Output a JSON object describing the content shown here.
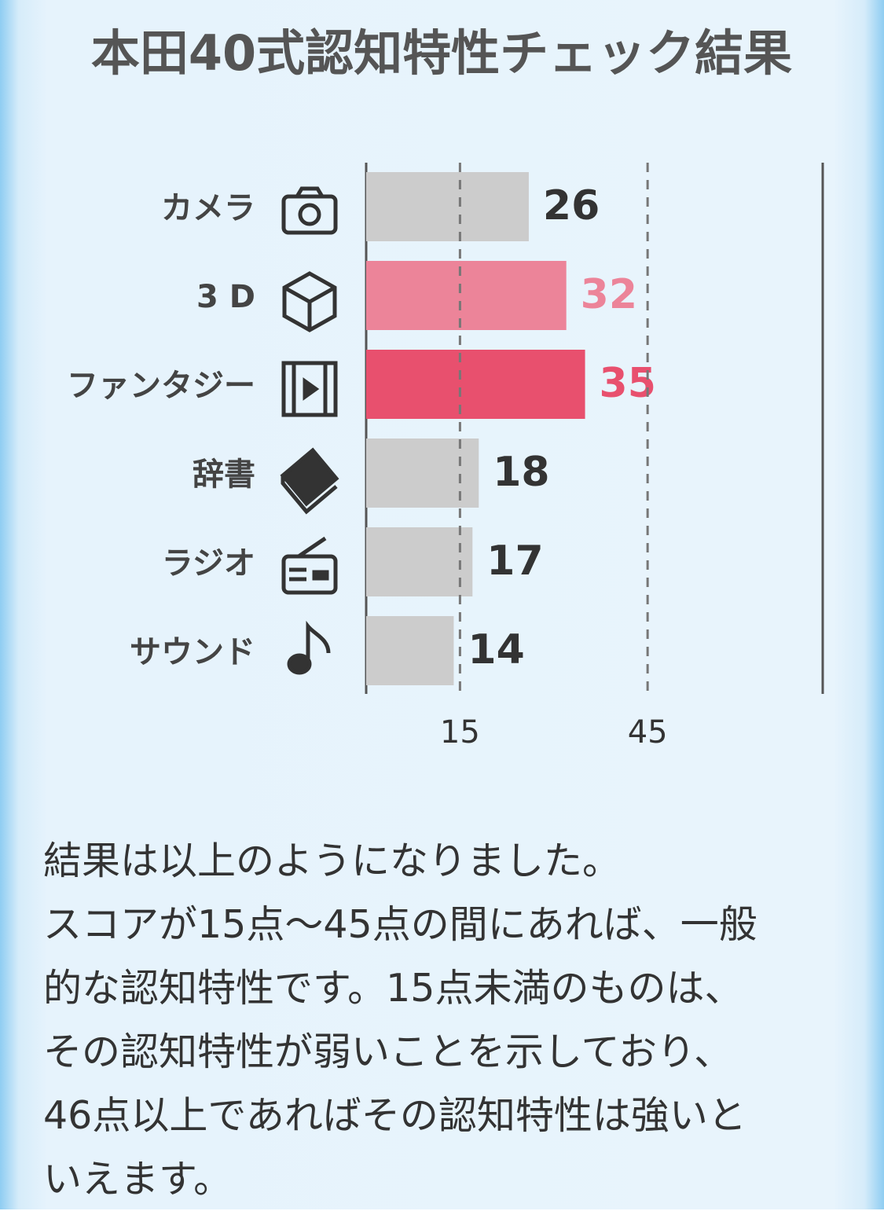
{
  "chart_data": {
    "type": "hbar",
    "title": "本田40式認知特性チェック結果",
    "categories": [
      "カメラ",
      "3 D",
      "ファンタジー",
      "辞書",
      "ラジオ",
      "サウンド"
    ],
    "values": [
      26,
      32,
      35,
      18,
      17,
      14
    ],
    "colors": [
      "#cccccc",
      "#ec8499",
      "#e8506e",
      "#cccccc",
      "#cccccc",
      "#cccccc"
    ],
    "label_colors": [
      "#333333",
      "#ec8499",
      "#e8506e",
      "#333333",
      "#333333",
      "#333333"
    ],
    "xlim": [
      0,
      73
    ],
    "xticks": [
      15,
      45
    ],
    "grid": true
  },
  "paragraph": {
    "lines": [
      "結果は以上のようになりました。",
      "スコアが15点〜45点の間にあれば、一般",
      "的な認知特性です。15点未満のものは、",
      "その認知特性が弱いことを示しており、",
      "46点以上であればその認知特性は強いと",
      "いえます。"
    ]
  }
}
